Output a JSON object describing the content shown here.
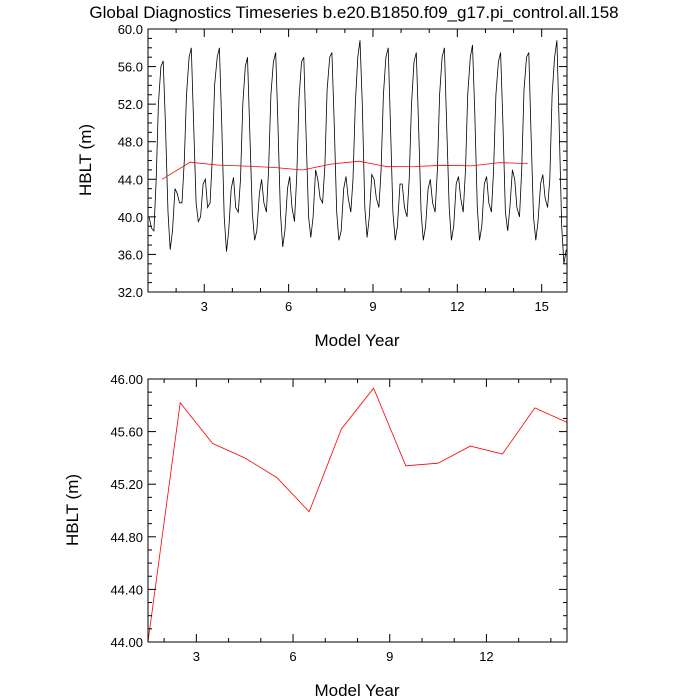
{
  "chart_data": [
    {
      "type": "line",
      "title": "Global Diagnostics Timeseries b.e20.B1850.f09_g17.pi_control.all.158",
      "xlabel": "Model Year",
      "ylabel": "HBLT (m)",
      "xlim": [
        1.0,
        15.9
      ],
      "ylim": [
        32.0,
        60.0
      ],
      "x_ticks": [
        3,
        6,
        9,
        12,
        15
      ],
      "y_ticks": [
        "32.0",
        "36.0",
        "40.0",
        "44.0",
        "48.0",
        "52.0",
        "56.0",
        "60.0"
      ],
      "grid": false,
      "series": [
        {
          "color": "#000000",
          "x": [
            1.04,
            1.12,
            1.21,
            1.29,
            1.37,
            1.46,
            1.54,
            1.62,
            1.71,
            1.79,
            1.87,
            1.96,
            2.04,
            2.12,
            2.21,
            2.29,
            2.37,
            2.46,
            2.54,
            2.62,
            2.71,
            2.79,
            2.87,
            2.96,
            3.04,
            3.12,
            3.21,
            3.29,
            3.37,
            3.46,
            3.54,
            3.62,
            3.71,
            3.79,
            3.87,
            3.96,
            4.04,
            4.12,
            4.21,
            4.29,
            4.37,
            4.46,
            4.54,
            4.62,
            4.71,
            4.79,
            4.87,
            4.96,
            5.04,
            5.12,
            5.21,
            5.29,
            5.37,
            5.46,
            5.54,
            5.62,
            5.71,
            5.79,
            5.87,
            5.96,
            6.04,
            6.12,
            6.21,
            6.29,
            6.37,
            6.46,
            6.54,
            6.62,
            6.71,
            6.79,
            6.87,
            6.96,
            7.04,
            7.12,
            7.21,
            7.29,
            7.37,
            7.46,
            7.54,
            7.62,
            7.71,
            7.79,
            7.87,
            7.96,
            8.04,
            8.12,
            8.21,
            8.29,
            8.37,
            8.46,
            8.54,
            8.62,
            8.71,
            8.79,
            8.87,
            8.96,
            9.04,
            9.12,
            9.21,
            9.29,
            9.37,
            9.46,
            9.54,
            9.62,
            9.71,
            9.79,
            9.87,
            9.96,
            10.04,
            10.12,
            10.21,
            10.29,
            10.37,
            10.46,
            10.54,
            10.62,
            10.71,
            10.79,
            10.87,
            10.96,
            11.04,
            11.12,
            11.21,
            11.29,
            11.37,
            11.46,
            11.54,
            11.62,
            11.71,
            11.79,
            11.87,
            11.96,
            12.04,
            12.12,
            12.21,
            12.29,
            12.37,
            12.46,
            12.54,
            12.62,
            12.71,
            12.79,
            12.87,
            12.96,
            13.04,
            13.12,
            13.21,
            13.29,
            13.37,
            13.46,
            13.54,
            13.62,
            13.71,
            13.79,
            13.87,
            13.96,
            14.04,
            14.12,
            14.21,
            14.29,
            14.37,
            14.46,
            14.54,
            14.62,
            14.71,
            14.79,
            14.87,
            14.96,
            15.04,
            15.12,
            15.21,
            15.29,
            15.37,
            15.46,
            15.54,
            15.62,
            15.71,
            15.79,
            15.87
          ],
          "values": [
            40.0,
            38.8,
            38.5,
            44.0,
            52.0,
            56.0,
            56.6,
            50.0,
            40.5,
            36.5,
            38.5,
            43.0,
            42.5,
            41.5,
            41.5,
            46.0,
            53.0,
            57.0,
            58.0,
            50.0,
            41.5,
            39.5,
            40.0,
            43.5,
            44.0,
            41.0,
            41.5,
            46.5,
            54.0,
            57.0,
            58.0,
            50.0,
            40.0,
            36.3,
            38.5,
            43.0,
            44.2,
            41.0,
            40.5,
            44.0,
            52.0,
            56.0,
            57.0,
            49.0,
            40.5,
            37.5,
            38.5,
            42.5,
            44.0,
            41.5,
            40.5,
            45.0,
            53.0,
            56.5,
            57.5,
            50.0,
            40.5,
            36.8,
            38.5,
            43.0,
            44.3,
            41.0,
            39.5,
            44.5,
            52.5,
            56.5,
            57.0,
            49.0,
            40.0,
            37.8,
            40.0,
            45.0,
            44.0,
            42.0,
            41.5,
            45.5,
            53.5,
            57.0,
            57.5,
            50.0,
            40.5,
            37.5,
            38.5,
            43.0,
            44.3,
            42.0,
            40.5,
            44.0,
            52.0,
            57.0,
            58.8,
            52.0,
            41.0,
            37.8,
            40.0,
            44.5,
            44.0,
            42.0,
            41.0,
            45.0,
            53.0,
            57.0,
            58.0,
            50.0,
            40.5,
            37.5,
            39.0,
            43.5,
            43.5,
            41.0,
            40.0,
            44.0,
            52.0,
            56.5,
            57.5,
            50.0,
            40.5,
            37.5,
            39.0,
            43.0,
            44.0,
            41.5,
            40.5,
            45.0,
            53.0,
            57.0,
            58.0,
            50.0,
            41.0,
            37.5,
            39.0,
            43.5,
            44.3,
            42.0,
            40.5,
            45.0,
            53.0,
            57.0,
            58.3,
            51.0,
            41.0,
            37.5,
            39.0,
            43.5,
            44.3,
            41.5,
            40.5,
            45.0,
            53.0,
            56.5,
            57.5,
            50.0,
            40.5,
            38.5,
            41.0,
            45.0,
            44.0,
            41.0,
            40.0,
            45.0,
            53.5,
            57.0,
            57.5,
            49.0,
            40.0,
            37.5,
            39.5,
            43.5,
            44.5,
            42.0,
            41.0,
            44.0,
            53.0,
            57.0,
            58.8,
            50.0,
            39.0,
            35.0,
            36.5
          ]
        },
        {
          "color": "#ff0000",
          "x": [
            1.5,
            2.5,
            3.5,
            4.5,
            5.5,
            6.5,
            7.5,
            8.5,
            9.5,
            10.5,
            11.5,
            12.5,
            13.5,
            14.5
          ],
          "values": [
            44.0,
            45.82,
            45.51,
            45.4,
            45.25,
            44.99,
            45.62,
            45.93,
            45.34,
            45.36,
            45.49,
            45.43,
            45.78,
            45.67
          ]
        }
      ]
    },
    {
      "type": "line",
      "title": "",
      "xlabel": "Model Year",
      "ylabel": "HBLT (m)",
      "xlim": [
        1.5,
        14.5
      ],
      "ylim": [
        44.0,
        46.0
      ],
      "x_ticks": [
        3,
        6,
        9,
        12
      ],
      "y_ticks": [
        "44.00",
        "44.40",
        "44.80",
        "45.20",
        "45.60",
        "46.00"
      ],
      "grid": false,
      "series": [
        {
          "color": "#ff0000",
          "x": [
            1.5,
            2.5,
            3.5,
            4.5,
            5.5,
            6.5,
            7.5,
            8.5,
            9.5,
            10.5,
            11.5,
            12.5,
            13.5,
            14.5
          ],
          "values": [
            44.0,
            45.82,
            45.51,
            45.4,
            45.25,
            44.99,
            45.62,
            45.93,
            45.34,
            45.36,
            45.49,
            45.43,
            45.78,
            45.67
          ]
        }
      ]
    }
  ]
}
